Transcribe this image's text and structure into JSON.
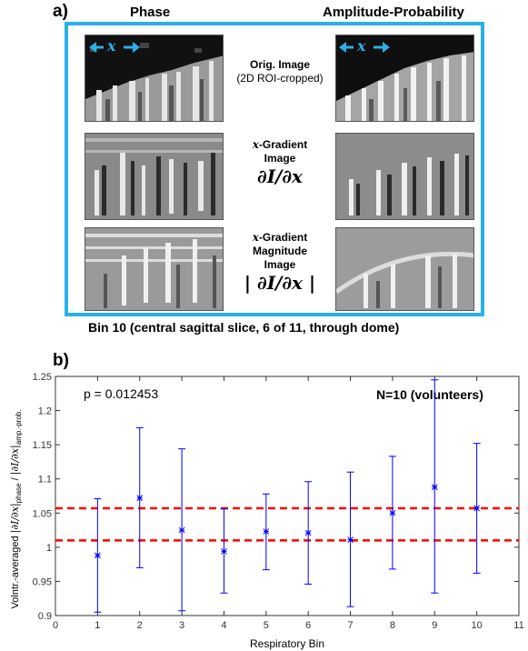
{
  "panel_a": {
    "label": "a)",
    "col_left_title": "Phase",
    "col_right_title": "Amplitude-Probability",
    "row1_title": "Orig. Image",
    "row1_sub": "(2D ROI-cropped)",
    "row2_title_var": "x",
    "row2_title_rest": "-Gradient",
    "row2_title2": "Image",
    "row2_math": "∂I/∂x",
    "row3_title_var": "x",
    "row3_title_rest": "-Gradient",
    "row3_title2": "Magnitude",
    "row3_title3": "Image",
    "row3_math": "| ∂I/∂x |",
    "arrow_var": "x",
    "caption": "Bin 10 (central sagittal slice, 6 of 11, through dome)",
    "frame_color": "#2ab0e8"
  },
  "panel_b": {
    "label": "b)"
  },
  "chart_data": {
    "type": "scatter",
    "title": "",
    "annotation_p": "p = 0.012453",
    "annotation_n": "N=10 (volunteers)",
    "xlabel": "Respiratory Bin",
    "ylabel": "Volntr.-averaged |∂I/∂x|phase / |∂I/∂x|amp.-prob.",
    "xlim": [
      0,
      11
    ],
    "ylim": [
      0.9,
      1.25
    ],
    "xticks": [
      "0",
      "1",
      "2",
      "3",
      "4",
      "5",
      "6",
      "7",
      "8",
      "9",
      "10",
      "11"
    ],
    "yticks": [
      "0.9",
      "0.95",
      "1",
      "1.05",
      "1.1",
      "1.15",
      "1.2",
      "1.25"
    ],
    "series_color": "#0000ff",
    "ref_color": "#ff0000",
    "x": [
      1,
      2,
      3,
      4,
      5,
      6,
      7,
      8,
      9,
      10
    ],
    "mean": [
      0.988,
      1.072,
      1.025,
      0.994,
      1.023,
      1.021,
      1.011,
      1.05,
      1.088,
      1.057
    ],
    "lower": [
      0.905,
      0.97,
      0.907,
      0.933,
      0.967,
      0.946,
      0.913,
      0.968,
      0.933,
      0.962
    ],
    "upper": [
      1.071,
      1.175,
      1.144,
      1.056,
      1.078,
      1.096,
      1.11,
      1.133,
      1.245,
      1.152
    ],
    "ref_lines": [
      1.057,
      1.01
    ]
  }
}
